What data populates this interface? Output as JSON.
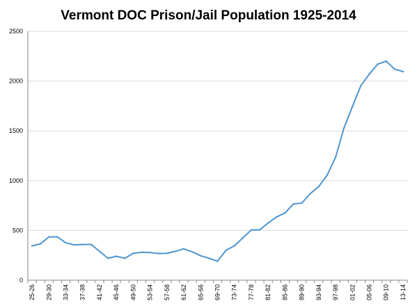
{
  "chart_data": {
    "type": "line",
    "title": "Vermont DOC Prison/Jail Population 1925-2014",
    "xlabel": "",
    "ylabel": "",
    "ylim": [
      0,
      2500
    ],
    "yticks": [
      0,
      500,
      1000,
      1500,
      2000,
      2500
    ],
    "grid": true,
    "legend": "none",
    "colors": {
      "series": "#4e95d0",
      "grid": "#d9d9d9",
      "axis": "#868686"
    },
    "categories": [
      "25-26",
      "27-28",
      "29-30",
      "31-32",
      "33-34",
      "35-36",
      "37-38",
      "39-40",
      "41-42",
      "43-44",
      "45-46",
      "47-48",
      "49-50",
      "51-52",
      "53-54",
      "55-56",
      "57-58",
      "59-60",
      "61-62",
      "63-64",
      "65-66",
      "67-68",
      "69-70",
      "71-72",
      "73-74",
      "75-76",
      "77-78",
      "79-80",
      "81-82",
      "83-84",
      "85-86",
      "87-88",
      "89-90",
      "91-92",
      "93-94",
      "95-96",
      "97-98",
      "99-00",
      "01-02",
      "03-04",
      "05-06",
      "07-08",
      "09-10",
      "11-12",
      "13-14"
    ],
    "labeled_categories": [
      "25-26",
      "29-30",
      "33-34",
      "37-38",
      "41-42",
      "45-46",
      "49-50",
      "53-54",
      "57-58",
      "61-62",
      "65-66",
      "69-70",
      "73-74",
      "77-78",
      "81-82",
      "85-86",
      "89-90",
      "93-94",
      "97-98",
      "01-02",
      "05-06",
      "09-10",
      "13-14"
    ],
    "series": [
      {
        "values": [
          345,
          365,
          435,
          435,
          375,
          355,
          358,
          360,
          290,
          220,
          240,
          220,
          270,
          280,
          278,
          268,
          270,
          290,
          315,
          285,
          245,
          220,
          190,
          300,
          345,
          425,
          505,
          505,
          575,
          635,
          675,
          765,
          775,
          870,
          940,
          1055,
          1235,
          1530,
          1745,
          1955,
          2070,
          2170,
          2200,
          2120,
          2095
        ]
      }
    ]
  }
}
